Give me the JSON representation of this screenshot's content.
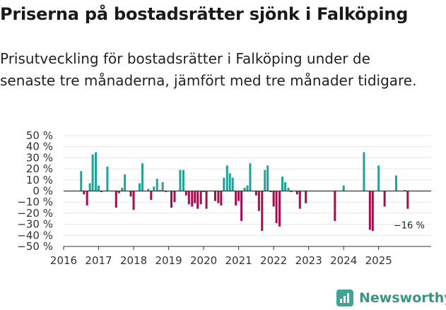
{
  "header": {
    "title": "Priserna på bostadsrätter sjönk i Falköping",
    "subtitle": "Prisutveckling för bostadsrätter i Falköping under de senaste tre månaderna, jämfört med tre månader tidigare."
  },
  "brand": {
    "name": "Newsworthy",
    "icon": "newsworthy-logo-icon",
    "color": "#43a393"
  },
  "colors": {
    "positive": "#1fa396",
    "negative": "#a50d4d",
    "grid": "#e6e6e6",
    "axis": "#333333"
  },
  "chart_data": {
    "type": "bar",
    "title": "Priserna på bostadsrätter sjönk i Falköping",
    "ylabel": "",
    "xlabel": "",
    "ylim": [
      -50,
      50
    ],
    "yticks": [
      50,
      40,
      30,
      20,
      10,
      0,
      -10,
      -20,
      -30,
      -40,
      -50
    ],
    "ytick_labels": [
      "50 %",
      "40 %",
      "30 %",
      "20 %",
      "10 %",
      "0 %",
      "−10 %",
      "−20 %",
      "−30 %",
      "−40 %",
      "−50 %"
    ],
    "xlim": [
      2016.0,
      2026.5
    ],
    "xticks": [
      2016,
      2017,
      2018,
      2019,
      2020,
      2021,
      2022,
      2023,
      2024,
      2025
    ],
    "xtick_labels": [
      "2016",
      "2017",
      "2018",
      "2019",
      "2020",
      "2021",
      "2022",
      "2023",
      "2024",
      "2025"
    ],
    "grid": true,
    "annotation": {
      "text": "−16 %",
      "x": 2025.83,
      "y": -16
    },
    "x": [
      2016.5,
      2016.58,
      2016.67,
      2016.75,
      2016.83,
      2016.92,
      2017.0,
      2017.08,
      2017.25,
      2017.5,
      2017.58,
      2017.67,
      2017.75,
      2017.92,
      2018.0,
      2018.17,
      2018.25,
      2018.42,
      2018.5,
      2018.58,
      2018.67,
      2018.75,
      2018.83,
      2018.92,
      2019.08,
      2019.17,
      2019.33,
      2019.42,
      2019.5,
      2019.58,
      2019.67,
      2019.75,
      2019.83,
      2019.92,
      2020.0,
      2020.08,
      2020.33,
      2020.42,
      2020.5,
      2020.58,
      2020.67,
      2020.75,
      2020.83,
      2020.92,
      2021.0,
      2021.08,
      2021.17,
      2021.25,
      2021.33,
      2021.5,
      2021.58,
      2021.67,
      2021.75,
      2021.83,
      2021.92,
      2022.0,
      2022.08,
      2022.17,
      2022.25,
      2022.33,
      2022.42,
      2022.5,
      2022.67,
      2022.75,
      2022.92,
      2023.75,
      2024.0,
      2024.58,
      2024.75,
      2024.83,
      2025.0,
      2025.17,
      2025.5,
      2025.75,
      2025.83
    ],
    "values": [
      18,
      -3,
      -13,
      7,
      33,
      35,
      5,
      -1,
      22,
      -15,
      -2,
      3,
      15,
      -5,
      -17,
      7,
      25,
      2,
      -8,
      4,
      11,
      1,
      8,
      -1,
      -15,
      -10,
      19,
      19,
      -4,
      -12,
      -14,
      -11,
      -16,
      -12,
      -1,
      -16,
      -9,
      -11,
      -13,
      12,
      23,
      16,
      12,
      -13,
      -9,
      -27,
      3,
      5,
      25,
      -4,
      -18,
      -36,
      19,
      23,
      -1,
      -14,
      -29,
      -32,
      13,
      8,
      3,
      -1,
      -3,
      -16,
      -11,
      -27,
      5,
      35,
      -35,
      -36,
      23,
      -14,
      14,
      1,
      -16
    ]
  }
}
